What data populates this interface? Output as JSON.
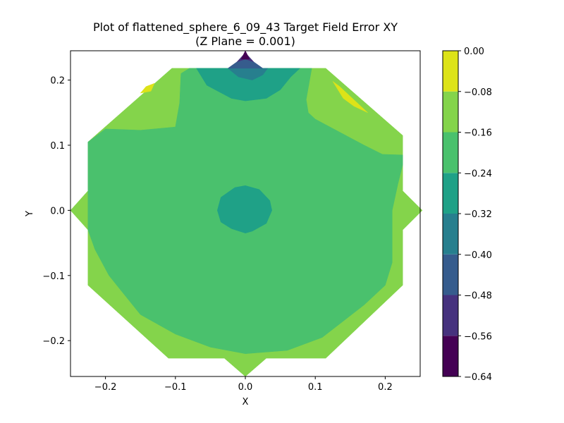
{
  "chart_data": {
    "type": "contour",
    "title": "Plot of flattened_sphere_6_09_43 Target Field Error XY",
    "subtitle": "(Z Plane = 0.001)",
    "xlabel": "X",
    "ylabel": "Y",
    "xlim": [
      -0.25,
      0.25
    ],
    "ylim": [
      -0.255,
      0.245
    ],
    "x_ticks": [
      -0.2,
      -0.1,
      0.0,
      0.1,
      0.2
    ],
    "x_tick_labels": [
      "−0.2",
      "−0.1",
      "0.0",
      "0.1",
      "0.2"
    ],
    "y_ticks": [
      -0.2,
      -0.1,
      0.0,
      0.1,
      0.2
    ],
    "y_tick_labels": [
      "−0.2",
      "−0.1",
      "0.0",
      "0.1",
      "0.2"
    ],
    "grid": false,
    "colorbar": {
      "levels": [
        -0.64,
        -0.56,
        -0.48,
        -0.4,
        -0.32,
        -0.24,
        -0.16,
        -0.08,
        0.0
      ],
      "tick_labels": [
        "−0.64",
        "−0.56",
        "−0.48",
        "−0.40",
        "−0.32",
        "−0.24",
        "−0.16",
        "−0.08",
        "0.00"
      ],
      "colors": [
        "#440154",
        "#46327e",
        "#365c8d",
        "#277f8e",
        "#1fa187",
        "#4ac16d",
        "#84d44b",
        "#dde318"
      ]
    },
    "regions": [
      {
        "band": "-0.16 to -0.08",
        "color": "#84d44b",
        "points": [
          [
            0.0,
            -0.255
          ],
          [
            0.03,
            -0.227
          ],
          [
            0.115,
            -0.227
          ],
          [
            0.225,
            -0.115
          ],
          [
            0.225,
            -0.03
          ],
          [
            0.253,
            0.0
          ],
          [
            0.225,
            0.03
          ],
          [
            0.225,
            0.115
          ],
          [
            0.115,
            0.218
          ],
          [
            -0.105,
            0.218
          ],
          [
            -0.225,
            0.105
          ],
          [
            -0.225,
            0.03
          ],
          [
            -0.25,
            0.0
          ],
          [
            -0.225,
            -0.03
          ],
          [
            -0.225,
            -0.115
          ],
          [
            -0.11,
            -0.227
          ],
          [
            -0.03,
            -0.227
          ]
        ]
      },
      {
        "band": "-0.24 to -0.16",
        "color": "#4ac16d",
        "points": [
          [
            -0.225,
            0.105
          ],
          [
            -0.2,
            0.125
          ],
          [
            -0.15,
            0.123
          ],
          [
            -0.1,
            0.128
          ],
          [
            -0.094,
            0.165
          ],
          [
            -0.092,
            0.21
          ],
          [
            -0.08,
            0.218
          ],
          [
            0.095,
            0.218
          ],
          [
            0.087,
            0.17
          ],
          [
            0.09,
            0.15
          ],
          [
            0.1,
            0.14
          ],
          [
            0.135,
            0.12
          ],
          [
            0.17,
            0.1
          ],
          [
            0.196,
            0.086
          ],
          [
            0.225,
            0.085
          ],
          [
            0.225,
            0.07
          ],
          [
            0.218,
            0.04
          ],
          [
            0.21,
            0.0
          ],
          [
            0.21,
            -0.03
          ],
          [
            0.21,
            -0.08
          ],
          [
            0.2,
            -0.115
          ],
          [
            0.17,
            -0.145
          ],
          [
            0.14,
            -0.17
          ],
          [
            0.11,
            -0.195
          ],
          [
            0.06,
            -0.215
          ],
          [
            0.0,
            -0.22
          ],
          [
            -0.05,
            -0.21
          ],
          [
            -0.1,
            -0.19
          ],
          [
            -0.15,
            -0.16
          ],
          [
            -0.18,
            -0.12
          ],
          [
            -0.195,
            -0.1
          ],
          [
            -0.215,
            -0.06
          ],
          [
            -0.225,
            -0.03
          ],
          [
            -0.225,
            0.03
          ]
        ]
      },
      {
        "band": "-0.32 to -0.24",
        "color": "#1fa187",
        "points": [
          [
            -0.07,
            0.218
          ],
          [
            -0.055,
            0.192
          ],
          [
            -0.02,
            0.172
          ],
          [
            0.0,
            0.168
          ],
          [
            0.03,
            0.172
          ],
          [
            0.05,
            0.185
          ],
          [
            0.065,
            0.205
          ],
          [
            0.078,
            0.218
          ]
        ]
      },
      {
        "band": "-0.32 to -0.24",
        "color": "#1fa187",
        "points": [
          [
            -0.04,
            0.0
          ],
          [
            -0.035,
            0.02
          ],
          [
            -0.015,
            0.035
          ],
          [
            0.0,
            0.038
          ],
          [
            0.02,
            0.032
          ],
          [
            0.035,
            0.015
          ],
          [
            0.038,
            0.0
          ],
          [
            0.03,
            -0.02
          ],
          [
            0.01,
            -0.032
          ],
          [
            0.0,
            -0.035
          ],
          [
            -0.02,
            -0.028
          ],
          [
            -0.035,
            -0.018
          ]
        ]
      },
      {
        "band": "-0.40 to -0.32",
        "color": "#277f8e",
        "points": [
          [
            -0.025,
            0.218
          ],
          [
            -0.01,
            0.205
          ],
          [
            0.01,
            0.2
          ],
          [
            0.025,
            0.208
          ],
          [
            0.032,
            0.218
          ]
        ]
      },
      {
        "band": "-0.48 to -0.40",
        "color": "#365c8d",
        "points": [
          [
            -0.025,
            0.218
          ],
          [
            -0.012,
            0.228
          ],
          [
            0.0,
            0.232
          ],
          [
            0.012,
            0.228
          ],
          [
            0.025,
            0.218
          ]
        ]
      },
      {
        "band": "-0.56 to -0.48",
        "color": "#46327e",
        "points": [
          [
            -0.012,
            0.228
          ],
          [
            0.0,
            0.242
          ],
          [
            0.012,
            0.228
          ],
          [
            0.0,
            0.232
          ]
        ]
      },
      {
        "band": "-0.64 to -0.56",
        "color": "#440154",
        "points": [
          [
            -0.006,
            0.232
          ],
          [
            0.0,
            0.245
          ],
          [
            0.006,
            0.232
          ]
        ]
      },
      {
        "band": "-0.08 to 0.00",
        "color": "#dde318",
        "points": [
          [
            0.125,
            0.198
          ],
          [
            0.14,
            0.172
          ],
          [
            0.155,
            0.16
          ],
          [
            0.175,
            0.15
          ],
          [
            0.135,
            0.19
          ]
        ]
      },
      {
        "band": "-0.08 to 0.00",
        "color": "#dde318",
        "points": [
          [
            -0.15,
            0.18
          ],
          [
            -0.142,
            0.19
          ],
          [
            -0.13,
            0.195
          ],
          [
            -0.135,
            0.183
          ]
        ]
      }
    ]
  }
}
